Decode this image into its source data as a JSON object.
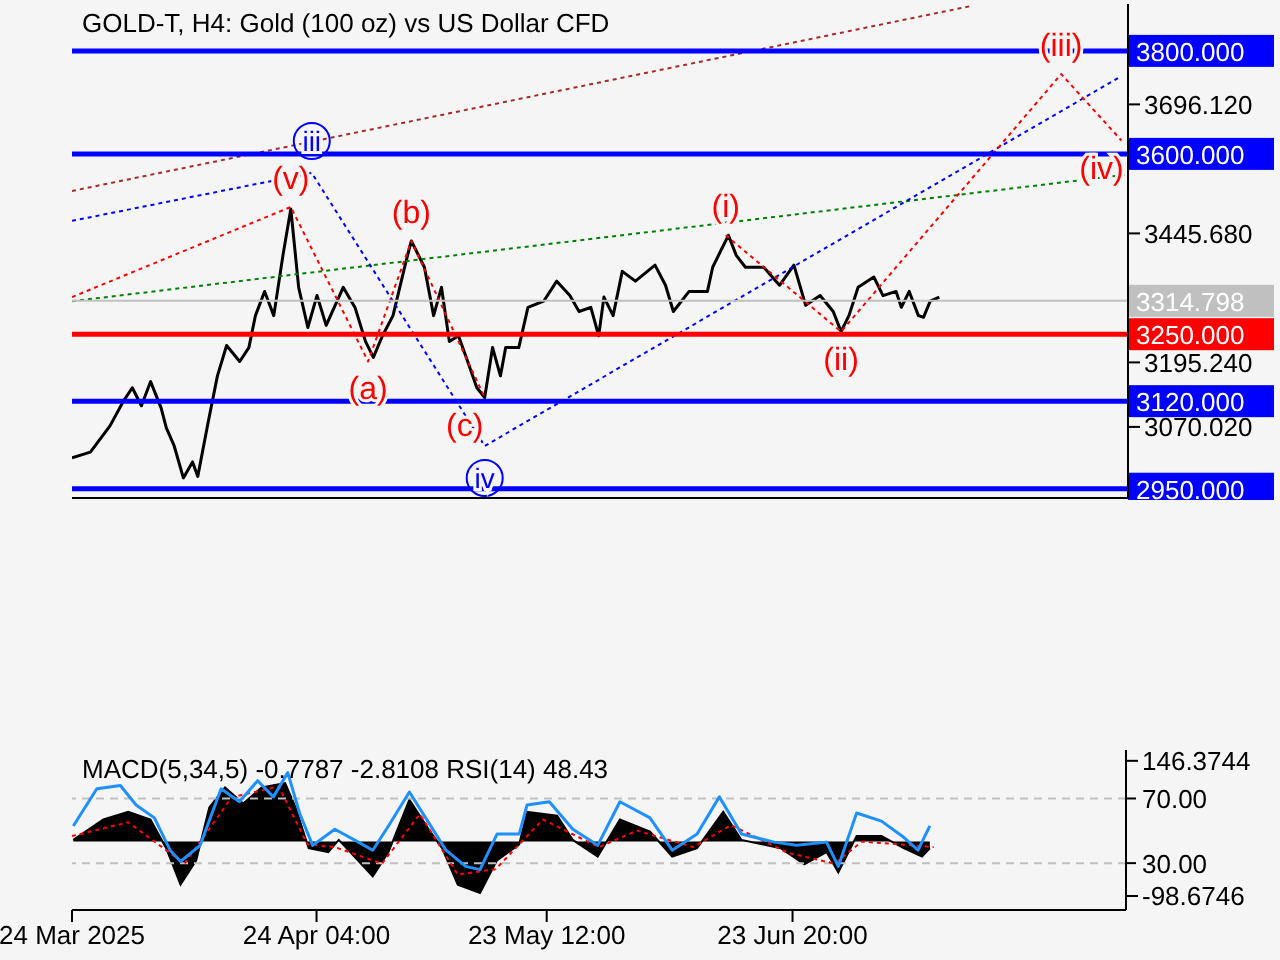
{
  "chart_data": [
    {
      "type": "line",
      "title": "GOLD-T, H4:  Gold (100 oz) vs US Dollar CFD",
      "tick_labels": "y",
      "xlim": [
        "2025-03-24T00:00",
        "2025-08-05T08:00"
      ],
      "ylim": [
        2932,
        3891
      ],
      "yticks": [
        {
          "value": 3070.02,
          "label": "3070.020"
        },
        {
          "value": 3195.24,
          "label": "3195.240"
        },
        {
          "value": 3445.68,
          "label": "3445.680"
        },
        {
          "value": 3696.12,
          "label": "3696.120"
        }
      ],
      "series": [
        {
          "color": "#000000",
          "x": [
            "2025-03-24T00:00",
            "2025-03-26T08:00",
            "2025-03-28T20:00",
            "2025-03-30T12:00",
            "2025-03-31T16:00",
            "2025-04-01T20:00",
            "2025-04-03T00:00",
            "2025-04-04T08:00",
            "2025-04-05T00:00",
            "2025-04-06T00:00",
            "2025-04-07T04:00",
            "2025-04-08T08:00",
            "2025-04-09T00:00",
            "2025-04-10T08:00",
            "2025-04-11T12:00",
            "2025-04-12T16:00",
            "2025-04-14T08:00",
            "2025-04-15T12:00",
            "2025-04-16T08:00",
            "2025-04-17T12:00",
            "2025-04-18T16:00",
            "2025-04-19T20:00",
            "2025-04-20T20:00",
            "2025-04-21T20:00",
            "2025-04-23T00:00",
            "2025-04-24T04:00",
            "2025-04-25T08:00",
            "2025-04-27T12:00",
            "2025-04-29T00:00",
            "2025-04-30T08:00",
            "2025-05-01T08:00",
            "2025-05-02T12:00",
            "2025-05-03T20:00",
            "2025-05-05T12:00",
            "2025-05-06T04:00",
            "2025-05-07T20:00",
            "2025-05-09T00:00",
            "2025-05-10T00:00",
            "2025-05-11T00:00",
            "2025-05-12T04:00",
            "2025-05-13T08:00",
            "2025-05-14T12:00",
            "2025-05-15T12:00",
            "2025-05-16T12:00",
            "2025-05-17T12:00",
            "2025-05-18T04:00",
            "2025-05-19T20:00",
            "2025-05-21T00:00",
            "2025-05-23T00:00",
            "2025-05-24T16:00",
            "2025-05-26T08:00",
            "2025-05-27T12:00",
            "2025-05-29T00:00",
            "2025-05-30T00:00",
            "2025-05-30T16:00",
            "2025-05-31T20:00",
            "2025-06-02T00:00",
            "2025-06-03T16:00",
            "2025-06-06T04:00",
            "2025-06-07T12:00",
            "2025-06-08T12:00",
            "2025-06-10T12:00",
            "2025-06-12T20:00",
            "2025-06-13T12:00",
            "2025-06-14T12:00",
            "2025-06-15T12:00",
            "2025-06-16T12:00",
            "2025-06-17T16:00",
            "2025-06-20T00:00",
            "2025-06-22T00:00",
            "2025-06-23T20:00",
            "2025-06-25T08:00",
            "2025-06-27T04:00",
            "2025-06-28T20:00",
            "2025-06-29T20:00",
            "2025-06-30T20:00",
            "2025-07-02T00:00",
            "2025-07-04T00:00",
            "2025-07-05T04:00",
            "2025-07-06T20:00",
            "2025-07-07T12:00",
            "2025-07-08T12:00",
            "2025-07-09T16:00",
            "2025-07-10T08:00",
            "2025-07-11T04:00",
            "2025-07-12T08:00"
          ],
          "values": [
            3010,
            3021,
            3072,
            3119,
            3146,
            3111,
            3158,
            3107,
            3068,
            3033,
            2971,
            3002,
            2974,
            3080,
            3169,
            3228,
            3197,
            3224,
            3286,
            3333,
            3286,
            3403,
            3493,
            3341,
            3263,
            3325,
            3267,
            3341,
            3302,
            3236,
            3205,
            3247,
            3286,
            3392,
            3431,
            3380,
            3286,
            3341,
            3236,
            3247,
            3197,
            3146,
            3127,
            3224,
            3169,
            3224,
            3224,
            3302,
            3314,
            3353,
            3325,
            3294,
            3302,
            3247,
            3322,
            3286,
            3372,
            3353,
            3384,
            3345,
            3294,
            3333,
            3333,
            3380,
            3411,
            3442,
            3403,
            3380,
            3380,
            3345,
            3384,
            3306,
            3325,
            3294,
            3255,
            3286,
            3341,
            3361,
            3325,
            3333,
            3302,
            3333,
            3286,
            3283,
            3314,
            3322
          ]
        },
        {
          "color": "#a52a2a",
          "line_style": "dotted",
          "x": [
            "2025-03-24T00:00",
            "2025-07-16T08:00"
          ],
          "values": [
            3528,
            3887
          ]
        },
        {
          "color": "#008000",
          "line_style": "dotted",
          "x": [
            "2025-03-24T00:00",
            "2025-08-05T08:00"
          ],
          "values": [
            3314,
            3560
          ]
        },
        {
          "color": "#0000ff",
          "line_style": "dotted",
          "x": [
            "2025-03-24T00:00",
            "2025-04-23T12:00",
            "2025-05-15T12:00",
            "2025-08-04T12:00"
          ],
          "values": [
            3470,
            3563,
            3033,
            3751
          ]
        },
        {
          "color": "#ff0000",
          "line_style": "dotted",
          "x": [
            "2025-03-24T00:00",
            "2025-04-20T20:00",
            "2025-04-30T16:00",
            "2025-05-06T04:00",
            "2025-05-15T12:00"
          ],
          "values": [
            3322,
            3497,
            3197,
            3431,
            3127
          ]
        },
        {
          "color": "#ff0000",
          "line_style": "dotted",
          "x": [
            "2025-06-15T04:00",
            "2025-06-29T20:00",
            "2025-07-27T20:00",
            "2025-08-04T12:00"
          ],
          "values": [
            3442,
            3255,
            3755,
            3626
          ]
        }
      ],
      "ref_lines": [
        {
          "axis": "y",
          "value": 3800,
          "label": "3800.000",
          "color": "#0000ff"
        },
        {
          "axis": "y",
          "value": 3600,
          "label": "3600.000",
          "color": "#0000ff"
        },
        {
          "axis": "y",
          "value": 3314.798,
          "label": "3314.798",
          "color": "#c0c0c0"
        },
        {
          "axis": "y",
          "value": 3250,
          "label": "3250.000",
          "color": "#ff0000"
        },
        {
          "axis": "y",
          "value": 3120,
          "label": "3120.000",
          "color": "#0000ff"
        },
        {
          "axis": "y",
          "value": 2950,
          "label": "2950.000",
          "color": "#0000ff"
        }
      ],
      "annotations": [
        {
          "text": "iii",
          "x": "2025-04-23T12:00",
          "y": 3563
        },
        {
          "text": "iv",
          "x": "2025-05-15T12:00",
          "y": 3033
        },
        {
          "text": "(v)",
          "x": "2025-04-20T20:00",
          "y": 3497
        },
        {
          "text": "(b)",
          "x": "2025-05-06T04:00",
          "y": 3431
        },
        {
          "text": "(a)",
          "x": "2025-04-30T16:00",
          "y": 3197
        },
        {
          "text": "(c)",
          "x": "2025-05-15T12:00",
          "y": 3127
        },
        {
          "text": "(i)",
          "x": "2025-06-15T04:00",
          "y": 3442
        },
        {
          "text": "(ii)",
          "x": "2025-06-29T20:00",
          "y": 3255
        },
        {
          "text": "(iii)",
          "x": "2025-07-27T20:00",
          "y": 3755
        },
        {
          "text": "(iv)",
          "x": "2025-08-04T12:00",
          "y": 3626
        }
      ]
    },
    {
      "type": "area",
      "title": "MACD(5,34,5) -0.7787 -2.8108 RSI(14) 48.43",
      "xlim": [
        "2025-03-24T00:00",
        "2025-08-05T08:00"
      ],
      "xticks": [
        {
          "value": "2025-03-24T00:00",
          "label": "24 Mar 2025"
        },
        {
          "value": "2025-04-24T04:00",
          "label": "24 Apr 04:00"
        },
        {
          "value": "2025-05-23T12:00",
          "label": "23 May 12:00"
        },
        {
          "value": "2025-06-23T20:00",
          "label": "23 Jun 20:00"
        }
      ],
      "ylim": [
        -124,
        166
      ],
      "yticks": [
        {
          "value": 146.3744,
          "label": "146.3744"
        },
        {
          "value": -98.6746,
          "label": "-98.6746"
        }
      ],
      "y2lim": [
        1,
        100
      ],
      "y2ticks": [
        {
          "value": 70,
          "label": "70.00"
        },
        {
          "value": 30,
          "label": "30.00"
        }
      ],
      "series": [
        {
          "color": "#000000",
          "x": [
            "2025-03-24T04:00",
            "2025-03-28T00:00",
            "2025-03-31T04:00",
            "2025-04-03T00:00",
            "2025-04-05T00:00",
            "2025-04-06T20:00",
            "2025-04-08T20:00",
            "2025-04-10T12:00",
            "2025-04-12T12:00",
            "2025-04-14T20:00",
            "2025-04-17T04:00",
            "2025-04-20T04:00",
            "2025-04-21T12:00",
            "2025-04-23T04:00",
            "2025-04-25T16:00",
            "2025-04-27T00:00",
            "2025-05-01T08:00",
            "2025-05-03T08:00",
            "2025-05-06T00:00",
            "2025-05-08T08:00",
            "2025-05-10T04:00",
            "2025-05-12T04:00",
            "2025-05-15T00:00",
            "2025-05-17T04:00",
            "2025-05-20T00:00",
            "2025-05-21T00:00",
            "2025-05-24T20:00",
            "2025-05-26T20:00",
            "2025-05-30T00:00",
            "2025-06-01T20:00",
            "2025-06-05T16:00",
            "2025-06-08T12:00",
            "2025-06-11T16:00",
            "2025-06-15T00:00",
            "2025-06-17T08:00",
            "2025-06-22T08:00",
            "2025-06-25T08:00",
            "2025-06-28T04:00",
            "2025-06-29T16:00",
            "2025-07-02T00:00",
            "2025-07-05T04:00",
            "2025-07-08T00:00",
            "2025-07-10T08:00",
            "2025-07-11T08:00"
          ],
          "values": [
            3,
            40,
            54,
            40,
            -12,
            -78,
            -34,
            62,
            98,
            69,
            98,
            106,
            62,
            -12,
            -19,
            3,
            -63,
            -19,
            76,
            25,
            -12,
            -78,
            -93,
            -34,
            -5,
            54,
            47,
            3,
            -27,
            40,
            18,
            -27,
            -12,
            54,
            3,
            -12,
            -41,
            -19,
            -56,
            10,
            10,
            -12,
            -27,
            -12
          ]
        },
        {
          "type": "line",
          "color": "#ff0000",
          "line_style": "dotted",
          "x": [
            "2025-03-24T00:00",
            "2025-03-31T04:00",
            "2025-04-07T08:00",
            "2025-04-13T08:00",
            "2025-04-19T08:00",
            "2025-04-23T00:00",
            "2025-04-26T12:00",
            "2025-05-02T12:00",
            "2025-05-07T08:00",
            "2025-05-12T04:00",
            "2025-05-17T00:00",
            "2025-05-23T00:00",
            "2025-05-30T04:00",
            "2025-06-04T00:00",
            "2025-06-11T04:00",
            "2025-06-16T00:00",
            "2025-06-23T04:00",
            "2025-06-29T04:00",
            "2025-07-02T16:00",
            "2025-07-07T12:00",
            "2025-07-11T20:00"
          ],
          "values": [
            10,
            35,
            -40,
            80,
            100,
            -5,
            -10,
            -40,
            50,
            -60,
            -50,
            40,
            -10,
            20,
            -10,
            30,
            -20,
            -40,
            0,
            -5,
            -10
          ]
        },
        {
          "type": "line",
          "axis": "y2",
          "color": "#1e90ff",
          "x": [
            "2025-03-24T04:00",
            "2025-03-27T04:00",
            "2025-03-30T04:00",
            "2025-04-01T04:00",
            "2025-04-03T12:00",
            "2025-04-05T12:00",
            "2025-04-06T20:00",
            "2025-04-09T08:00",
            "2025-04-12T00:00",
            "2025-04-14T08:00",
            "2025-04-16T16:00",
            "2025-04-18T16:00",
            "2025-04-20T12:00",
            "2025-04-22T00:00",
            "2025-04-23T16:00",
            "2025-04-26T12:00",
            "2025-04-29T12:00",
            "2025-05-01T08:00",
            "2025-05-03T08:00",
            "2025-05-06T00:00",
            "2025-05-08T08:00",
            "2025-05-10T16:00",
            "2025-05-13T04:00",
            "2025-05-15T00:00",
            "2025-05-17T04:00",
            "2025-05-20T00:00",
            "2025-05-21T00:00",
            "2025-05-23T20:00",
            "2025-05-26T20:00",
            "2025-05-30T00:00",
            "2025-06-01T20:00",
            "2025-06-05T16:00",
            "2025-06-08T12:00",
            "2025-06-11T16:00",
            "2025-06-14T12:00",
            "2025-06-17T08:00",
            "2025-06-21T12:00",
            "2025-06-24T08:00",
            "2025-06-28T04:00",
            "2025-06-29T16:00",
            "2025-07-02T00:00",
            "2025-07-05T04:00",
            "2025-07-08T00:00",
            "2025-07-09T20:00",
            "2025-07-11T08:00"
          ],
          "values": [
            53,
            76,
            78,
            66,
            58,
            38,
            31,
            41,
            76,
            68,
            81,
            71,
            86,
            61,
            41,
            51,
            43,
            38,
            53,
            74,
            56,
            38,
            28,
            26,
            48,
            48,
            66,
            68,
            51,
            41,
            68,
            58,
            38,
            48,
            71,
            48,
            43,
            41,
            43,
            28,
            61,
            56,
            46,
            38,
            53
          ]
        }
      ],
      "ref_lines": [
        {
          "axis": "y2",
          "value": 70,
          "color": "#c0c0c0",
          "line_style": "dashed"
        },
        {
          "axis": "y2",
          "value": 30,
          "color": "#c0c0c0",
          "line_style": "dashed"
        }
      ]
    }
  ]
}
